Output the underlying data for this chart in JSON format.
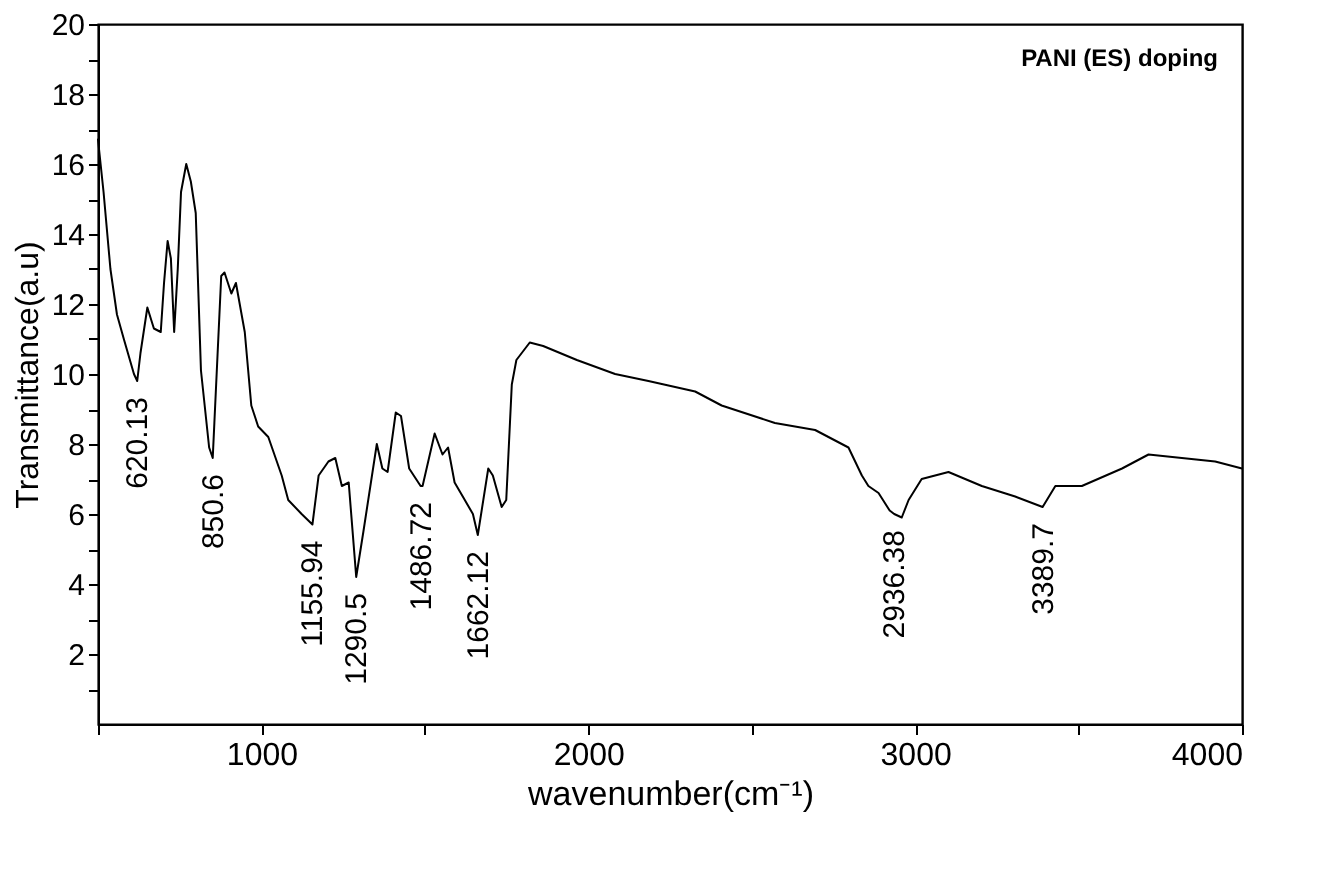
{
  "chart_data": {
    "type": "line",
    "xlabel": "wavenumber(cm⁻¹)",
    "ylabel": "Transmittance(a.u)",
    "xlim": [
      500,
      4000
    ],
    "ylim": [
      0,
      20
    ],
    "xticks": [
      {
        "value": 500,
        "label": null
      },
      1000,
      {
        "value": 1500,
        "label": null
      },
      2000,
      {
        "value": 2500,
        "label": null
      },
      3000,
      {
        "value": 3500,
        "label": null
      },
      4000
    ],
    "yticks": [
      {
        "value": 1,
        "label": null
      },
      2,
      {
        "value": 3,
        "label": null
      },
      4,
      {
        "value": 5,
        "label": null
      },
      6,
      {
        "value": 7,
        "label": null
      },
      8,
      {
        "value": 9,
        "label": null
      },
      10,
      {
        "value": 11,
        "label": null
      },
      12,
      {
        "value": 13,
        "label": null
      },
      14,
      {
        "value": 15,
        "label": null
      },
      16,
      {
        "value": 17,
        "label": null
      },
      18,
      {
        "value": 19,
        "label": null
      },
      20
    ],
    "grid": false,
    "line_style": "solid",
    "marker": "none",
    "series": [
      {
        "color": "#000000",
        "x": [
          500,
          517,
          538,
          558,
          579,
          610,
          620,
          630,
          651,
          671,
          692,
          702,
          713,
          723,
          733,
          744,
          754,
          770,
          784,
          799,
          815,
          840,
          851,
          856,
          877,
          887,
          908,
          922,
          949,
          969,
          990,
          1021,
          1062,
          1082,
          1123,
          1156,
          1175,
          1205,
          1226,
          1246,
          1267,
          1290,
          1312,
          1353,
          1370,
          1386,
          1411,
          1427,
          1452,
          1487,
          1493,
          1530,
          1554,
          1571,
          1591,
          1616,
          1647,
          1662,
          1694,
          1708,
          1735,
          1749,
          1766,
          1780,
          1821,
          1862,
          1965,
          2082,
          2184,
          2327,
          2408,
          2571,
          2694,
          2796,
          2837,
          2857,
          2888,
          2922,
          2936,
          2959,
          2980,
          3020,
          3102,
          3204,
          3306,
          3390,
          3429,
          3510,
          3633,
          3714,
          3816,
          3918,
          4000
        ],
        "values": [
          16.7,
          15.2,
          13.0,
          11.7,
          11.0,
          10.0,
          9.8,
          10.6,
          11.9,
          11.3,
          11.2,
          12.6,
          13.8,
          13.3,
          11.2,
          13.0,
          15.2,
          16.0,
          15.5,
          14.6,
          10.1,
          7.9,
          7.6,
          8.6,
          12.8,
          12.9,
          12.3,
          12.6,
          11.2,
          9.1,
          8.5,
          8.2,
          7.1,
          6.4,
          6.0,
          5.7,
          7.1,
          7.5,
          7.6,
          6.8,
          6.9,
          4.2,
          5.5,
          8.0,
          7.3,
          7.2,
          8.9,
          8.8,
          7.3,
          6.8,
          6.8,
          8.3,
          7.7,
          7.9,
          6.9,
          6.5,
          6.0,
          5.4,
          7.3,
          7.1,
          6.2,
          6.4,
          9.7,
          10.4,
          10.9,
          10.8,
          10.4,
          10.0,
          9.8,
          9.5,
          9.1,
          8.6,
          8.4,
          7.9,
          7.1,
          6.8,
          6.6,
          6.1,
          6.0,
          5.9,
          6.4,
          7.0,
          7.2,
          6.8,
          6.5,
          6.2,
          6.8,
          6.8,
          7.3,
          7.7,
          7.6,
          7.5,
          7.3
        ]
      }
    ],
    "annotations": [
      "PANI (ES) doping",
      {
        "text": "620.13",
        "x": 620,
        "y": 9.8
      },
      {
        "text": "850.6",
        "x": 851,
        "y": 7.6
      },
      {
        "text": "1155.94",
        "x": 1156,
        "y": 5.7
      },
      {
        "text": "1290.5",
        "x": 1290,
        "y": 4.2
      },
      {
        "text": "1486.72",
        "x": 1487,
        "y": 6.8
      },
      {
        "text": "1662.12",
        "x": 1662,
        "y": 5.4
      },
      {
        "text": "2936.38",
        "x": 2936,
        "y": 6.0
      },
      {
        "text": "3389.7",
        "x": 3390,
        "y": 6.2
      }
    ]
  }
}
